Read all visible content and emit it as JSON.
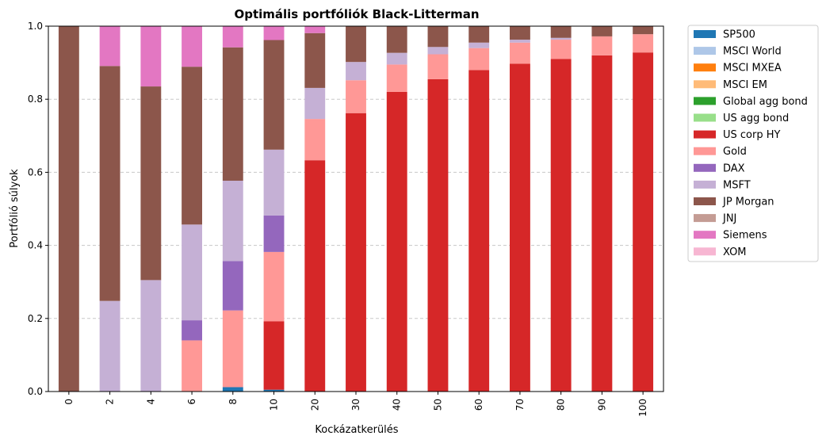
{
  "chart_data": {
    "type": "bar",
    "stacked": true,
    "title": "Optimális portfóliók Black-Litterman",
    "xlabel": "Kockázatkerülés",
    "ylabel": "Portfólió súlyok",
    "ylim": [
      0,
      1
    ],
    "yticks": [
      "0.0",
      "0.2",
      "0.4",
      "0.6",
      "0.8",
      "1.0"
    ],
    "grid": "horizontal dashed",
    "legend_position": "outside right",
    "categories": [
      "0",
      "2",
      "4",
      "6",
      "8",
      "10",
      "20",
      "30",
      "40",
      "50",
      "60",
      "70",
      "80",
      "90",
      "100"
    ],
    "series": [
      {
        "name": "SP500",
        "color": "#1f77b4",
        "values": [
          0,
          0,
          0,
          0,
          0.012,
          0.005,
          0,
          0,
          0,
          0,
          0,
          0,
          0,
          0,
          0
        ]
      },
      {
        "name": "MSCI World",
        "color": "#aec7e8",
        "values": [
          0,
          0,
          0,
          0,
          0,
          0,
          0,
          0,
          0,
          0,
          0,
          0,
          0,
          0,
          0
        ]
      },
      {
        "name": "MSCI MXEA",
        "color": "#ff7f0e",
        "values": [
          0,
          0,
          0,
          0,
          0,
          0,
          0,
          0,
          0,
          0,
          0,
          0,
          0,
          0,
          0
        ]
      },
      {
        "name": "MSCI EM",
        "color": "#ffbb78",
        "values": [
          0,
          0,
          0,
          0,
          0,
          0,
          0,
          0,
          0,
          0,
          0,
          0,
          0,
          0,
          0
        ]
      },
      {
        "name": "Global agg bond",
        "color": "#2ca02c",
        "values": [
          0,
          0,
          0,
          0,
          0,
          0,
          0,
          0,
          0,
          0,
          0,
          0,
          0,
          0,
          0
        ]
      },
      {
        "name": "US agg bond",
        "color": "#98df8a",
        "values": [
          0,
          0,
          0,
          0,
          0,
          0,
          0,
          0,
          0,
          0,
          0,
          0,
          0,
          0,
          0
        ]
      },
      {
        "name": "US corp HY",
        "color": "#d62728",
        "values": [
          0,
          0,
          0,
          0,
          0,
          0.187,
          0.633,
          0.762,
          0.82,
          0.855,
          0.88,
          0.897,
          0.91,
          0.92,
          0.928
        ]
      },
      {
        "name": "Gold",
        "color": "#ff9896",
        "values": [
          0,
          0,
          0,
          0.14,
          0.21,
          0.19,
          0.113,
          0.09,
          0.075,
          0.068,
          0.06,
          0.058,
          0.053,
          0.052,
          0.05
        ]
      },
      {
        "name": "DAX",
        "color": "#9467bd",
        "values": [
          0,
          0,
          0,
          0.055,
          0.135,
          0.1,
          0,
          0,
          0,
          0,
          0,
          0,
          0,
          0,
          0
        ]
      },
      {
        "name": "MSFT",
        "color": "#c5b0d5",
        "values": [
          0,
          0.248,
          0.305,
          0.262,
          0.22,
          0.18,
          0.085,
          0.05,
          0.032,
          0.02,
          0.015,
          0.008,
          0.005,
          0,
          0
        ]
      },
      {
        "name": "JP Morgan",
        "color": "#8c564b",
        "values": [
          1,
          0.643,
          0.53,
          0.432,
          0.365,
          0.3,
          0.15,
          0.098,
          0.073,
          0.057,
          0.045,
          0.037,
          0.032,
          0.028,
          0.022
        ]
      },
      {
        "name": "JNJ",
        "color": "#c49c94",
        "values": [
          0,
          0,
          0,
          0,
          0,
          0,
          0,
          0,
          0,
          0,
          0,
          0,
          0,
          0,
          0
        ]
      },
      {
        "name": "Siemens",
        "color": "#e377c2",
        "values": [
          0,
          0.109,
          0.165,
          0.111,
          0.058,
          0.038,
          0.019,
          0,
          0,
          0,
          0,
          0,
          0,
          0,
          0
        ]
      },
      {
        "name": "XOM",
        "color": "#f7b6d2",
        "values": [
          0,
          0,
          0,
          0,
          0,
          0,
          0,
          0,
          0,
          0,
          0,
          0,
          0,
          0,
          0
        ]
      }
    ]
  }
}
